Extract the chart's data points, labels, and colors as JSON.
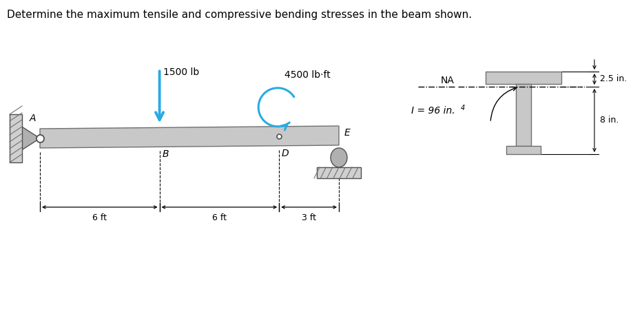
{
  "title": "Determine the maximum tensile and compressive bending stresses in the beam shown.",
  "title_fontsize": 11,
  "bg_color": "#ffffff",
  "beam_color": "#c8c8c8",
  "beam_edge": "#707070",
  "support_color": "#b0b0b0",
  "arrow_color": "#29abe2",
  "load_label": "1500 lb",
  "moment_label": "4500 lb·ft",
  "dim_6ft_1": "6 ft",
  "dim_6ft_2": "6 ft",
  "dim_3ft": "3 ft",
  "label_A": "A",
  "label_B": "B",
  "label_D": "D",
  "label_E": "E",
  "label_NA": "NA",
  "label_I": "I = 96 in.",
  "label_I_sup": "4",
  "label_25in": "2.5 in.",
  "label_8in": "8 in.",
  "tshape_color": "#c8c8c8",
  "tshape_edge": "#707070"
}
